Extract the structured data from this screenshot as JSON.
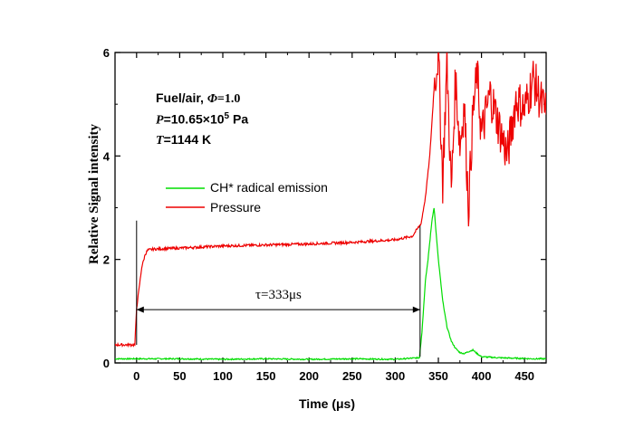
{
  "chart_data": {
    "type": "line",
    "xlabel": "Time (μs)",
    "ylabel": "Relative Signal intensity",
    "xlim": [
      -25,
      475
    ],
    "ylim": [
      0,
      6
    ],
    "xticks": [
      "0",
      "50",
      "100",
      "150",
      "200",
      "250",
      "300",
      "350",
      "400",
      "450"
    ],
    "yticks": [
      "0",
      "2",
      "4",
      "6"
    ],
    "conditions": {
      "fuel": "Fuel/air, ",
      "phi_symbol": "Φ",
      "phi_value": "=1.0",
      "pressure_symbol": "P",
      "pressure_value": "=10.65×10",
      "pressure_exp": "5",
      "pressure_unit": " Pa",
      "temperature_symbol": "T",
      "temperature_value": "=1144 K"
    },
    "annotation": {
      "text": "τ=333μs",
      "x_start": 0,
      "x_end": 333
    },
    "series": [
      {
        "name": "CH* radical emission",
        "color": "#00dd00",
        "x": [
          -25,
          -10,
          0,
          50,
          100,
          150,
          200,
          250,
          300,
          328,
          331,
          335,
          338,
          341,
          343,
          345,
          347,
          350,
          355,
          360,
          365,
          370,
          375,
          380,
          385,
          390,
          395,
          400,
          420,
          440,
          460,
          475
        ],
        "y": [
          0.08,
          0.08,
          0.08,
          0.08,
          0.07,
          0.08,
          0.07,
          0.08,
          0.07,
          0.1,
          0.6,
          1.6,
          2.0,
          2.5,
          2.8,
          3.0,
          2.6,
          2.0,
          1.2,
          0.7,
          0.42,
          0.28,
          0.2,
          0.18,
          0.22,
          0.25,
          0.18,
          0.12,
          0.1,
          0.09,
          0.08,
          0.08
        ]
      },
      {
        "name": "Pressure",
        "color": "#ee0000",
        "x": [
          -25,
          -2,
          0,
          3,
          6,
          10,
          13,
          20,
          50,
          100,
          150,
          200,
          250,
          300,
          320,
          330,
          335,
          340,
          345,
          350,
          355,
          360,
          365,
          370,
          375,
          380,
          385,
          390,
          395,
          400,
          410,
          420,
          430,
          440,
          450,
          460,
          470,
          475
        ],
        "y": [
          0.35,
          0.35,
          1.05,
          1.45,
          1.85,
          2.1,
          2.18,
          2.2,
          2.22,
          2.26,
          2.28,
          2.3,
          2.33,
          2.38,
          2.45,
          2.7,
          3.2,
          4.0,
          5.3,
          6.0,
          3.5,
          5.8,
          3.3,
          5.5,
          4.2,
          5.0,
          3.0,
          4.8,
          5.6,
          4.4,
          5.2,
          4.6,
          4.0,
          5.1,
          4.9,
          5.5,
          5.0,
          4.8
        ]
      }
    ]
  }
}
